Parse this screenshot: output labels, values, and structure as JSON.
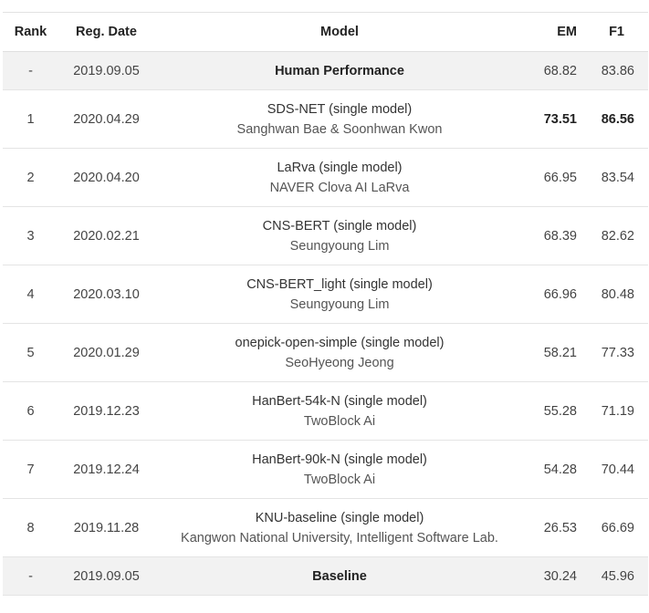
{
  "headers": {
    "rank": "Rank",
    "date": "Reg. Date",
    "model": "Model",
    "em": "EM",
    "f1": "F1"
  },
  "rows": [
    {
      "rank": "-",
      "date": "2019.09.05",
      "model": "Human Performance",
      "org": "",
      "em": "68.82",
      "f1": "83.86"
    },
    {
      "rank": "1",
      "date": "2020.04.29",
      "model": "SDS-NET (single model)",
      "org": "Sanghwan Bae & Soonhwan Kwon",
      "em": "73.51",
      "f1": "86.56"
    },
    {
      "rank": "2",
      "date": "2020.04.20",
      "model": "LaRva (single model)",
      "org": "NAVER Clova AI LaRva",
      "em": "66.95",
      "f1": "83.54"
    },
    {
      "rank": "3",
      "date": "2020.02.21",
      "model": "CNS-BERT (single model)",
      "org": "Seungyoung Lim",
      "em": "68.39",
      "f1": "82.62"
    },
    {
      "rank": "4",
      "date": "2020.03.10",
      "model": "CNS-BERT_light (single model)",
      "org": "Seungyoung Lim",
      "em": "66.96",
      "f1": "80.48"
    },
    {
      "rank": "5",
      "date": "2020.01.29",
      "model": "onepick-open-simple (single model)",
      "org": "SeoHyeong Jeong",
      "em": "58.21",
      "f1": "77.33"
    },
    {
      "rank": "6",
      "date": "2019.12.23",
      "model": "HanBert-54k-N (single model)",
      "org": "TwoBlock Ai",
      "em": "55.28",
      "f1": "71.19"
    },
    {
      "rank": "7",
      "date": "2019.12.24",
      "model": "HanBert-90k-N (single model)",
      "org": "TwoBlock Ai",
      "em": "54.28",
      "f1": "70.44"
    },
    {
      "rank": "8",
      "date": "2019.11.28",
      "model": "KNU-baseline (single model)",
      "org": "Kangwon National University, Intelligent Software Lab.",
      "em": "26.53",
      "f1": "66.69"
    },
    {
      "rank": "-",
      "date": "2019.09.05",
      "model": "Baseline",
      "org": "",
      "em": "30.24",
      "f1": "45.96"
    }
  ]
}
